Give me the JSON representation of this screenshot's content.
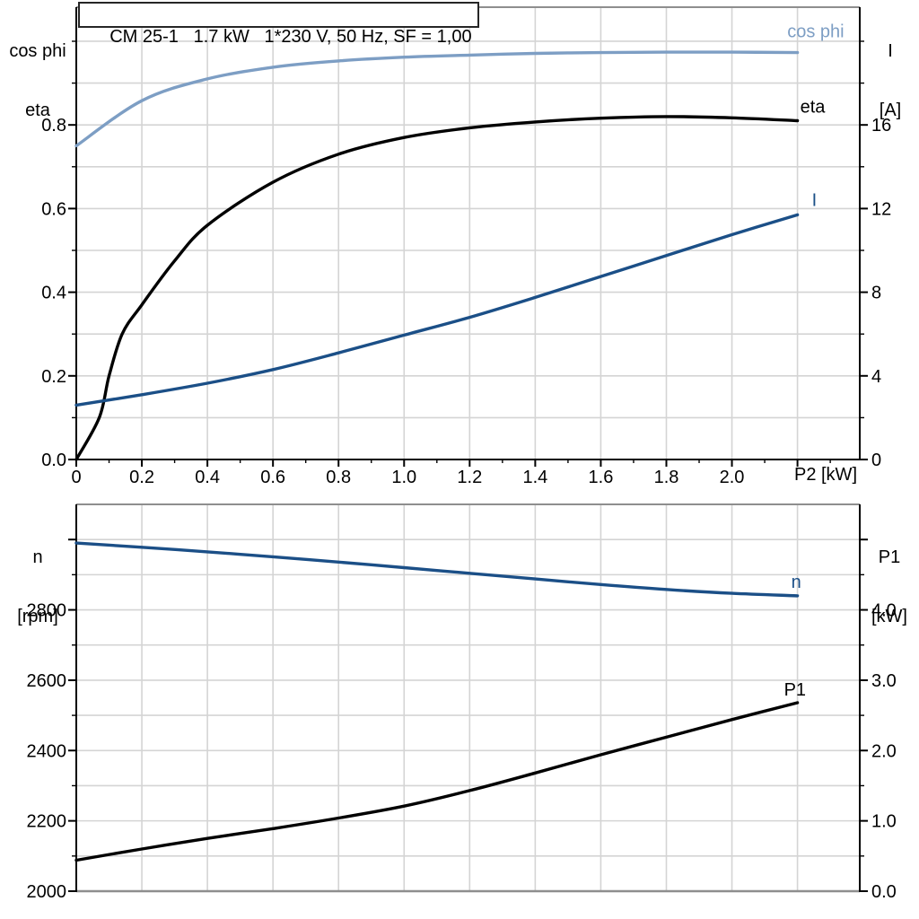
{
  "title": "CM 25-1   1.7 kW   1*230 V, 50 Hz, SF = 1,00",
  "colors": {
    "light_blue": "#7d9ec4",
    "dark_blue": "#1b4f87",
    "black": "#000000",
    "grid": "#d4d4d4",
    "frame_gray": "#8e8e8e"
  },
  "corner_labels": {
    "top_left_line1": "cos phi",
    "top_left_line2": "eta",
    "top_right_line1": "I",
    "top_right_line2": "[A]",
    "bottom_left_line1": "n",
    "bottom_left_line2": "[rpm]",
    "bottom_right_line1": "P1",
    "bottom_right_line2": "[kW]",
    "x_axis_unit": "P2 [kW]"
  },
  "chart_data": [
    {
      "type": "line",
      "title": "CM 25-1   1.7 kW   1*230 V, 50 Hz, SF = 1,00",
      "xlabel": "P2 [kW]",
      "xlim": [
        0,
        2.39
      ],
      "grid": true,
      "x_ticks": {
        "values": [
          0,
          0.2,
          0.4,
          0.6,
          0.8,
          1.0,
          1.2,
          1.4,
          1.6,
          1.8,
          2.0,
          2.2
        ],
        "labels": [
          "0",
          "0.2",
          "0.4",
          "0.6",
          "0.8",
          "1.0",
          "1.2",
          "1.4",
          "1.6",
          "1.8",
          "2.0",
          ""
        ],
        "minor_step": 0.1
      },
      "left_axis": {
        "label": "cos phi / eta",
        "lim": [
          0,
          1.0815
        ],
        "ticks": [
          0,
          0.2,
          0.4,
          0.6,
          0.8
        ],
        "tick_labels": [
          "0.0",
          "0.2",
          "0.4",
          "0.6",
          "0.8"
        ],
        "minor_step": 0.1,
        "grid_minor": true
      },
      "right_axis": {
        "label": "I [A]",
        "lim": [
          0,
          21.63
        ],
        "ticks": [
          0,
          4,
          8,
          12,
          16
        ],
        "tick_labels": [
          "0",
          "4",
          "8",
          "12",
          "16"
        ],
        "minor_step": 2
      },
      "x": [
        0,
        0.2,
        0.4,
        0.6,
        0.8,
        1.0,
        1.2,
        1.4,
        1.6,
        1.8,
        2.0,
        2.2
      ],
      "series": [
        {
          "name": "cos phi",
          "axis": "left",
          "color": "#7d9ec4",
          "values": [
            0.75,
            0.858,
            0.91,
            0.938,
            0.953,
            0.962,
            0.967,
            0.971,
            0.973,
            0.974,
            0.974,
            0.973
          ],
          "label": {
            "dx": 52,
            "dy": -17,
            "anchor": "end"
          }
        },
        {
          "name": "eta",
          "axis": "left",
          "color": "#000000",
          "x": [
            0,
            0.07,
            0.1,
            0.14,
            0.2,
            0.3,
            0.4,
            0.6,
            0.8,
            1.0,
            1.2,
            1.4,
            1.6,
            1.8,
            2.0,
            2.2
          ],
          "values": [
            0,
            0.1,
            0.2,
            0.3,
            0.37,
            0.475,
            0.56,
            0.663,
            0.73,
            0.77,
            0.793,
            0.807,
            0.816,
            0.82,
            0.817,
            0.81
          ],
          "label": {
            "dx": 3,
            "dy": -9,
            "anchor": "start"
          }
        },
        {
          "name": "I",
          "axis": "right",
          "color": "#1b4f87",
          "values": [
            2.6,
            3.1,
            3.65,
            4.3,
            5.1,
            5.95,
            6.8,
            7.75,
            8.75,
            9.75,
            10.75,
            11.7
          ],
          "label": {
            "dx": 16,
            "dy": -10,
            "anchor": "start"
          }
        }
      ]
    },
    {
      "type": "line",
      "title": "",
      "xlabel": "P2 [kW]",
      "xlim": [
        0,
        2.39
      ],
      "grid": true,
      "x_ticks": {
        "values": [
          0.2,
          0.4,
          0.6,
          0.8,
          1.0,
          1.2,
          1.4,
          1.6,
          1.8,
          2.0,
          2.2
        ],
        "labels": [
          "",
          "",
          "",
          "",
          "",
          "",
          "",
          "",
          "",
          "",
          ""
        ],
        "minor_step": null
      },
      "left_axis": {
        "label": "n [rpm]",
        "lim": [
          2000,
          3100
        ],
        "ticks": [
          2000,
          2200,
          2400,
          2600,
          2800,
          3000
        ],
        "tick_labels": [
          "2000",
          "2200",
          "2400",
          "2600",
          "2800",
          ""
        ],
        "minor_step": 100,
        "grid_minor": true
      },
      "right_axis": {
        "label": "P1 [kW]",
        "lim": [
          0,
          5.5
        ],
        "ticks": [
          0,
          1,
          2,
          3,
          4,
          5
        ],
        "tick_labels": [
          "0.0",
          "1.0",
          "2.0",
          "3.0",
          "4.0",
          ""
        ],
        "minor_step": 0.5
      },
      "x": [
        0,
        0.2,
        0.4,
        0.6,
        0.8,
        1.0,
        1.2,
        1.4,
        1.6,
        1.8,
        2.0,
        2.2
      ],
      "series": [
        {
          "name": "n",
          "axis": "left",
          "color": "#1b4f87",
          "values": [
            2990,
            2978,
            2965,
            2951,
            2936,
            2920,
            2904,
            2888,
            2872,
            2858,
            2847,
            2840
          ],
          "label": {
            "dx": -7,
            "dy": -9,
            "anchor": "start"
          }
        },
        {
          "name": "P1",
          "axis": "right",
          "color": "#000000",
          "values": [
            0.44,
            0.6,
            0.75,
            0.89,
            1.04,
            1.21,
            1.43,
            1.68,
            1.94,
            2.19,
            2.44,
            2.68
          ],
          "label": {
            "dx": -15,
            "dy": -8,
            "anchor": "start"
          }
        }
      ]
    }
  ]
}
